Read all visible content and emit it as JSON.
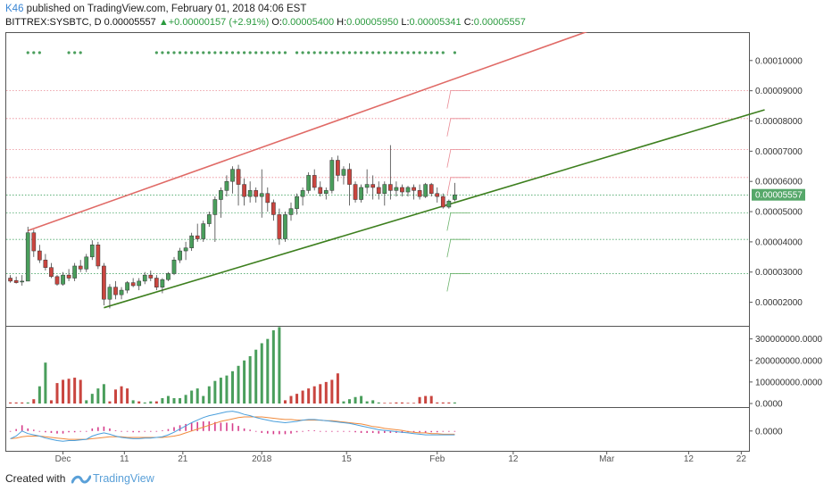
{
  "header": {
    "author": "K46",
    "published": "published on TradingView.com, February 01, 2018 04:06 EST",
    "symbol": "BITTREX:SYSBTC, D",
    "last": "0.00005557",
    "change_arrow": "▲",
    "change": "+0.00000157 (+2.91%)",
    "o_label": "O:",
    "o_value": "0.00005400",
    "h_label": "H:",
    "h_value": "0.00005950",
    "l_label": "L:",
    "l_value": "0.00005341",
    "c_label": "C:",
    "c_value": "0.00005557"
  },
  "footer": {
    "created_with": "Created with",
    "brand": "TradingView",
    "brand_icon": "tradingview-logo-icon"
  },
  "colors": {
    "up": "#4a9e5c",
    "down": "#c9453f",
    "resistance": "#e06a66",
    "support": "#3d7f1e",
    "macd": "#4a9fdc",
    "signal": "#f08a3c",
    "hist": "#d63c8a",
    "price_badge": "#56a86a"
  },
  "chart_data": [
    {
      "type": "candlestick",
      "series_name": "BITTREX:SYSBTC, D",
      "x_tick_labels": [
        "Dec",
        "11",
        "21",
        "2018",
        "15",
        "Feb",
        "12",
        "Mar",
        "12",
        "22"
      ],
      "y_tick_labels": [
        "0.00010000",
        "0.00009000",
        "0.00008000",
        "0.00007000",
        "0.00006000",
        "0.00005000",
        "0.00004000",
        "0.00003000",
        "0.00002000"
      ],
      "ylim": [
        1.22e-05,
        0.0001091
      ],
      "last_price": "0.00005557",
      "ohlc": [
        [
          2.8e-05,
          2.9e-05,
          2.65e-05,
          2.7e-05
        ],
        [
          2.72e-05,
          2.85e-05,
          2.62e-05,
          2.65e-05
        ],
        [
          2.68e-05,
          2.9e-05,
          2.55e-05,
          2.7e-05
        ],
        [
          2.7e-05,
          4.5e-05,
          2.7e-05,
          4.3e-05
        ],
        [
          4.3e-05,
          4.4e-05,
          3.5e-05,
          3.7e-05
        ],
        [
          3.7e-05,
          3.9e-05,
          3.3e-05,
          3.4e-05
        ],
        [
          3.4e-05,
          3.6e-05,
          3.05e-05,
          3.15e-05
        ],
        [
          3.15e-05,
          3.3e-05,
          2.8e-05,
          2.85e-05
        ],
        [
          2.85e-05,
          2.9e-05,
          2.55e-05,
          2.6e-05
        ],
        [
          2.6e-05,
          3e-05,
          2.55e-05,
          2.9e-05
        ],
        [
          2.9e-05,
          3.1e-05,
          2.7e-05,
          2.8e-05
        ],
        [
          2.8e-05,
          3.3e-05,
          2.7e-05,
          3.2e-05
        ],
        [
          3.2e-05,
          3.4e-05,
          3e-05,
          3.1e-05
        ],
        [
          3.1e-05,
          3.6e-05,
          3e-05,
          3.5e-05
        ],
        [
          3.5e-05,
          4.05e-05,
          3.4e-05,
          3.9e-05
        ],
        [
          3.9e-05,
          4e-05,
          3.1e-05,
          3.2e-05
        ],
        [
          3.2e-05,
          3.3e-05,
          1.9e-05,
          2.1e-05
        ],
        [
          2.1e-05,
          2.6e-05,
          1.8e-05,
          2.5e-05
        ],
        [
          2.5e-05,
          2.7e-05,
          2.1e-05,
          2.25e-05
        ],
        [
          2.25e-05,
          2.5e-05,
          2.1e-05,
          2.4e-05
        ],
        [
          2.4e-05,
          2.7e-05,
          2.3e-05,
          2.65e-05
        ],
        [
          2.65e-05,
          2.8e-05,
          2.5e-05,
          2.55e-05
        ],
        [
          2.55e-05,
          2.8e-05,
          2.4e-05,
          2.7e-05
        ],
        [
          2.7e-05,
          3e-05,
          2.6e-05,
          2.9e-05
        ],
        [
          2.9e-05,
          3.05e-05,
          2.7e-05,
          2.8e-05
        ],
        [
          2.8e-05,
          2.9e-05,
          2.4e-05,
          2.5e-05
        ],
        [
          2.5e-05,
          2.8e-05,
          2.3e-05,
          2.75e-05
        ],
        [
          2.75e-05,
          3e-05,
          2.7e-05,
          2.95e-05
        ],
        [
          2.95e-05,
          3.5e-05,
          2.9e-05,
          3.4e-05
        ],
        [
          3.4e-05,
          3.8e-05,
          3.3e-05,
          3.7e-05
        ],
        [
          3.7e-05,
          4e-05,
          3.4e-05,
          3.8e-05
        ],
        [
          3.8e-05,
          4.3e-05,
          3.7e-05,
          4.2e-05
        ],
        [
          4.2e-05,
          4.6e-05,
          4e-05,
          4.1e-05
        ],
        [
          4.1e-05,
          4.7e-05,
          4e-05,
          4.6e-05
        ],
        [
          4.6e-05,
          5e-05,
          4.5e-05,
          4.9e-05
        ],
        [
          4.9e-05,
          5.5e-05,
          4e-05,
          5.4e-05
        ],
        [
          5.4e-05,
          5.8e-05,
          4.8e-05,
          5.7e-05
        ],
        [
          5.7e-05,
          6.2e-05,
          5.5e-05,
          6e-05
        ],
        [
          6e-05,
          6.5e-05,
          5.6e-05,
          6.4e-05
        ],
        [
          6.4e-05,
          6.55e-05,
          5.2e-05,
          5.9e-05
        ],
        [
          5.9e-05,
          6.1e-05,
          5.2e-05,
          5.5e-05
        ],
        [
          5.5e-05,
          6e-05,
          5.3e-05,
          5.7e-05
        ],
        [
          5.7e-05,
          5.8e-05,
          5.3e-05,
          5.5e-05
        ],
        [
          5.5e-05,
          6.4e-05,
          4.8e-05,
          5.6e-05
        ],
        [
          5.6e-05,
          5.8e-05,
          5e-05,
          5.3e-05
        ],
        [
          5.3e-05,
          5.4e-05,
          4.7e-05,
          4.9e-05
        ],
        [
          4.9e-05,
          5.1e-05,
          3.9e-05,
          4.1e-05
        ],
        [
          4.1e-05,
          5e-05,
          4e-05,
          4.9e-05
        ],
        [
          4.9e-05,
          5.3e-05,
          4.7e-05,
          5.1e-05
        ],
        [
          5.1e-05,
          5.6e-05,
          4.9e-05,
          5.5e-05
        ],
        [
          5.5e-05,
          5.8e-05,
          5.2e-05,
          5.7e-05
        ],
        [
          5.7e-05,
          6.3e-05,
          5.6e-05,
          6.2e-05
        ],
        [
          6.2e-05,
          6.4e-05,
          5.7e-05,
          5.8e-05
        ],
        [
          5.8e-05,
          6e-05,
          5.5e-05,
          5.6e-05
        ],
        [
          5.6e-05,
          5.8e-05,
          5.4e-05,
          5.7e-05
        ],
        [
          5.7e-05,
          6.8e-05,
          5.6e-05,
          6.7e-05
        ],
        [
          6.7e-05,
          6.85e-05,
          6e-05,
          6.2e-05
        ],
        [
          6.2e-05,
          6.5e-05,
          5.9e-05,
          6.4e-05
        ],
        [
          6.4e-05,
          6.6e-05,
          5.2e-05,
          5.9e-05
        ],
        [
          5.9e-05,
          6e-05,
          5.3e-05,
          5.4e-05
        ],
        [
          5.4e-05,
          5.9e-05,
          5.3e-05,
          5.8e-05
        ],
        [
          5.8e-05,
          6.4e-05,
          5.6e-05,
          5.9e-05
        ],
        [
          5.9e-05,
          6.2e-05,
          5.4e-05,
          5.8e-05
        ],
        [
          5.8e-05,
          6e-05,
          5.4e-05,
          5.6e-05
        ],
        [
          5.6e-05,
          6e-05,
          5.2e-05,
          5.9e-05
        ],
        [
          5.9e-05,
          7.2e-05,
          5.4e-05,
          5.7e-05
        ],
        [
          5.7e-05,
          6e-05,
          5.5e-05,
          5.8e-05
        ],
        [
          5.8e-05,
          5.9e-05,
          5.5e-05,
          5.65e-05
        ],
        [
          5.65e-05,
          5.85e-05,
          5.5e-05,
          5.8e-05
        ],
        [
          5.8e-05,
          5.9e-05,
          5.4e-05,
          5.7e-05
        ],
        [
          5.7e-05,
          5.9e-05,
          5.4e-05,
          5.5e-05
        ],
        [
          5.5e-05,
          5.95e-05,
          5.45e-05,
          5.9e-05
        ],
        [
          5.9e-05,
          5.95e-05,
          5.5e-05,
          5.6e-05
        ],
        [
          5.6e-05,
          5.8e-05,
          5.3e-05,
          5.5e-05
        ],
        [
          5.5e-05,
          5.6e-05,
          5.1e-05,
          5.15e-05
        ],
        [
          5.15e-05,
          5.4e-05,
          5.1e-05,
          5.35e-05
        ],
        [
          5.4e-05,
          5.95e-05,
          5.34e-05,
          5.557e-05
        ]
      ],
      "trendlines": [
        {
          "name": "resistance",
          "from": [
            3,
            4.37e-05
          ],
          "to": [
            101,
            0.0001112
          ]
        },
        {
          "name": "support",
          "from": [
            16,
            1.82e-05
          ],
          "to": [
            129,
            8.37e-05
          ]
        }
      ],
      "horizontal_levels": [
        9e-05,
        8.08e-05,
        7.05e-05,
        6.13e-05,
        5.55e-05,
        4.96e-05,
        4.08e-05,
        2.95e-05
      ],
      "marker_dots_candles": [
        3,
        4,
        5,
        10,
        11,
        12,
        25,
        26,
        27,
        28,
        29,
        30,
        31,
        32,
        33,
        34,
        35,
        36,
        37,
        38,
        39,
        40,
        41,
        42,
        43,
        44,
        45,
        46,
        47,
        49,
        50,
        51,
        52,
        53,
        54,
        55,
        56,
        57,
        58,
        59,
        60,
        61,
        62,
        63,
        64,
        65,
        66,
        67,
        68,
        69,
        70,
        71,
        72,
        73,
        74,
        76
      ]
    },
    {
      "type": "bar",
      "series_name": "Volume",
      "y_tick_labels": [
        "300000000.0000",
        "200000000.0000",
        "100000000.0000",
        "0.0000"
      ],
      "ylim": [
        0,
        340000000
      ],
      "values": [
        5000000,
        5000000,
        5000000,
        5000000,
        20000000,
        80000000,
        190000000,
        15000000,
        95000000,
        110000000,
        115000000,
        120000000,
        110000000,
        15000000,
        45000000,
        70000000,
        90000000,
        10000000,
        65000000,
        80000000,
        70000000,
        15000000,
        10000000,
        5000000,
        10000000,
        10000000,
        25000000,
        35000000,
        25000000,
        25000000,
        40000000,
        60000000,
        70000000,
        35000000,
        80000000,
        105000000,
        120000000,
        130000000,
        150000000,
        175000000,
        200000000,
        220000000,
        250000000,
        280000000,
        300000000,
        340000000,
        355000000,
        15000000,
        35000000,
        45000000,
        60000000,
        70000000,
        80000000,
        90000000,
        100000000,
        110000000,
        140000000,
        10000000,
        20000000,
        30000000,
        35000000,
        10000000,
        15000000,
        5000000,
        3000000,
        3000000,
        5000000,
        5000000,
        3000000,
        3000000,
        30000000,
        35000000,
        35000000,
        5000000,
        5000000,
        5000000,
        5000000
      ],
      "directions": [
        "d",
        "d",
        "d",
        "u",
        "d",
        "u",
        "u",
        "d",
        "d",
        "d",
        "d",
        "d",
        "d",
        "u",
        "u",
        "u",
        "u",
        "d",
        "d",
        "d",
        "d",
        "u",
        "d",
        "u",
        "u",
        "d",
        "u",
        "u",
        "u",
        "u",
        "u",
        "u",
        "u",
        "u",
        "u",
        "u",
        "u",
        "u",
        "u",
        "u",
        "u",
        "u",
        "u",
        "u",
        "u",
        "u",
        "u",
        "d",
        "d",
        "d",
        "d",
        "d",
        "d",
        "d",
        "d",
        "d",
        "d",
        "u",
        "u",
        "u",
        "u",
        "u",
        "u",
        "u",
        "d",
        "d",
        "d",
        "d",
        "d",
        "d",
        "d",
        "d",
        "d",
        "d",
        "d",
        "d",
        "u"
      ]
    },
    {
      "type": "line",
      "series_name": "MACD",
      "y_tick_labels": [
        "0.0000"
      ],
      "ylim": [
        -3.1e-06,
        3.6e-06
      ],
      "macd": [
        -1.2e-06,
        -8e-07,
        0.0,
        -4e-07,
        -6e-07,
        -8e-07,
        -1.1e-06,
        -1.3e-06,
        -1.5e-06,
        -1.6e-06,
        -1.5e-06,
        -1.5e-06,
        -1.4e-06,
        -1.3e-06,
        -8e-07,
        -5e-07,
        -3e-07,
        -5e-07,
        -8e-07,
        -1e-06,
        -1.1e-06,
        -1.2e-06,
        -1.2e-06,
        -1.1e-06,
        -1.1e-06,
        -1e-06,
        -9e-07,
        -6e-07,
        -2e-07,
        3e-07,
        8e-07,
        1.3e-06,
        1.7e-06,
        2.1e-06,
        2.4e-06,
        2.6e-06,
        2.8e-06,
        3e-06,
        3.1e-06,
        2.9e-06,
        2.6e-06,
        2.4e-06,
        2.1e-06,
        1.9e-06,
        1.7e-06,
        1.5e-06,
        1.4e-06,
        1.3e-06,
        1.4e-06,
        1.5e-06,
        1.7e-06,
        1.8e-06,
        1.8e-06,
        1.7e-06,
        1.6e-06,
        1.5e-06,
        1.4e-06,
        1.3e-06,
        1.2e-06,
        1e-06,
        8e-07,
        6e-07,
        4e-07,
        2e-07,
        1e-07,
        0.0,
        -1e-07,
        -2e-07,
        -3e-07,
        -4e-07,
        -5e-07,
        -6e-07,
        -6e-07,
        -6e-07,
        -6e-07,
        -6e-07,
        -6e-07
      ],
      "signal": [
        -1.2e-06,
        -1.1e-06,
        -9e-07,
        -8e-07,
        -8e-07,
        -8e-07,
        -9e-07,
        -1e-06,
        -1.1e-06,
        -1.2e-06,
        -1.3e-06,
        -1.3e-06,
        -1.3e-06,
        -1.3e-06,
        -1.2e-06,
        -1.1e-06,
        -1e-06,
        -9e-07,
        -9e-07,
        -9e-07,
        -1e-06,
        -1e-06,
        -1e-06,
        -1e-06,
        -1e-06,
        -1e-06,
        -1e-06,
        -9e-07,
        -8e-07,
        -6e-07,
        -3e-07,
        0.0,
        3e-07,
        6e-07,
        9e-07,
        1.2e-06,
        1.5e-06,
        1.7e-06,
        1.9e-06,
        2.1e-06,
        2.2e-06,
        2.2e-06,
        2.2e-06,
        2.2e-06,
        2.1e-06,
        2e-06,
        1.9e-06,
        1.8e-06,
        1.8e-06,
        1.7e-06,
        1.7e-06,
        1.7e-06,
        1.7e-06,
        1.7e-06,
        1.6e-06,
        1.6e-06,
        1.5e-06,
        1.4e-06,
        1.3e-06,
        1.2e-06,
        1.1e-06,
        9e-07,
        7e-07,
        6e-07,
        4e-07,
        3e-07,
        2e-07,
        1e-07,
        -1e-07,
        -2e-07,
        -3e-07,
        -3e-07,
        -4e-07,
        -4e-07,
        -5e-07,
        -5e-07,
        -5e-07
      ],
      "histogram": [
        0.0,
        3e-07,
        9e-07,
        4e-07,
        2e-07,
        0.0,
        -2e-07,
        -3e-07,
        -4e-07,
        -4e-07,
        -2e-07,
        -2e-07,
        -1e-07,
        0.0,
        4e-07,
        6e-07,
        7e-07,
        4e-07,
        1e-07,
        -1e-07,
        -1e-07,
        -2e-07,
        -2e-07,
        -1e-07,
        -1e-07,
        0.0,
        1e-07,
        3e-07,
        6e-07,
        9e-07,
        1.1e-06,
        1.3e-06,
        1.4e-06,
        1.5e-06,
        1.5e-06,
        1.4e-06,
        1.3e-06,
        1.3e-06,
        1.2e-06,
        8e-07,
        4e-07,
        2e-07,
        -1e-07,
        -3e-07,
        -4e-07,
        -5e-07,
        -5e-07,
        -5e-07,
        -4e-07,
        -2e-07,
        0.0,
        1e-07,
        1e-07,
        0.0,
        0.0,
        -1e-07,
        -1e-07,
        -1e-07,
        -1e-07,
        -2e-07,
        -3e-07,
        -3e-07,
        -3e-07,
        -4e-07,
        -3e-07,
        -3e-07,
        -3e-07,
        -3e-07,
        -2e-07,
        -2e-07,
        -2e-07,
        -3e-07,
        -2e-07,
        -2e-07,
        -1e-07,
        -1e-07,
        -1e-07
      ]
    }
  ]
}
